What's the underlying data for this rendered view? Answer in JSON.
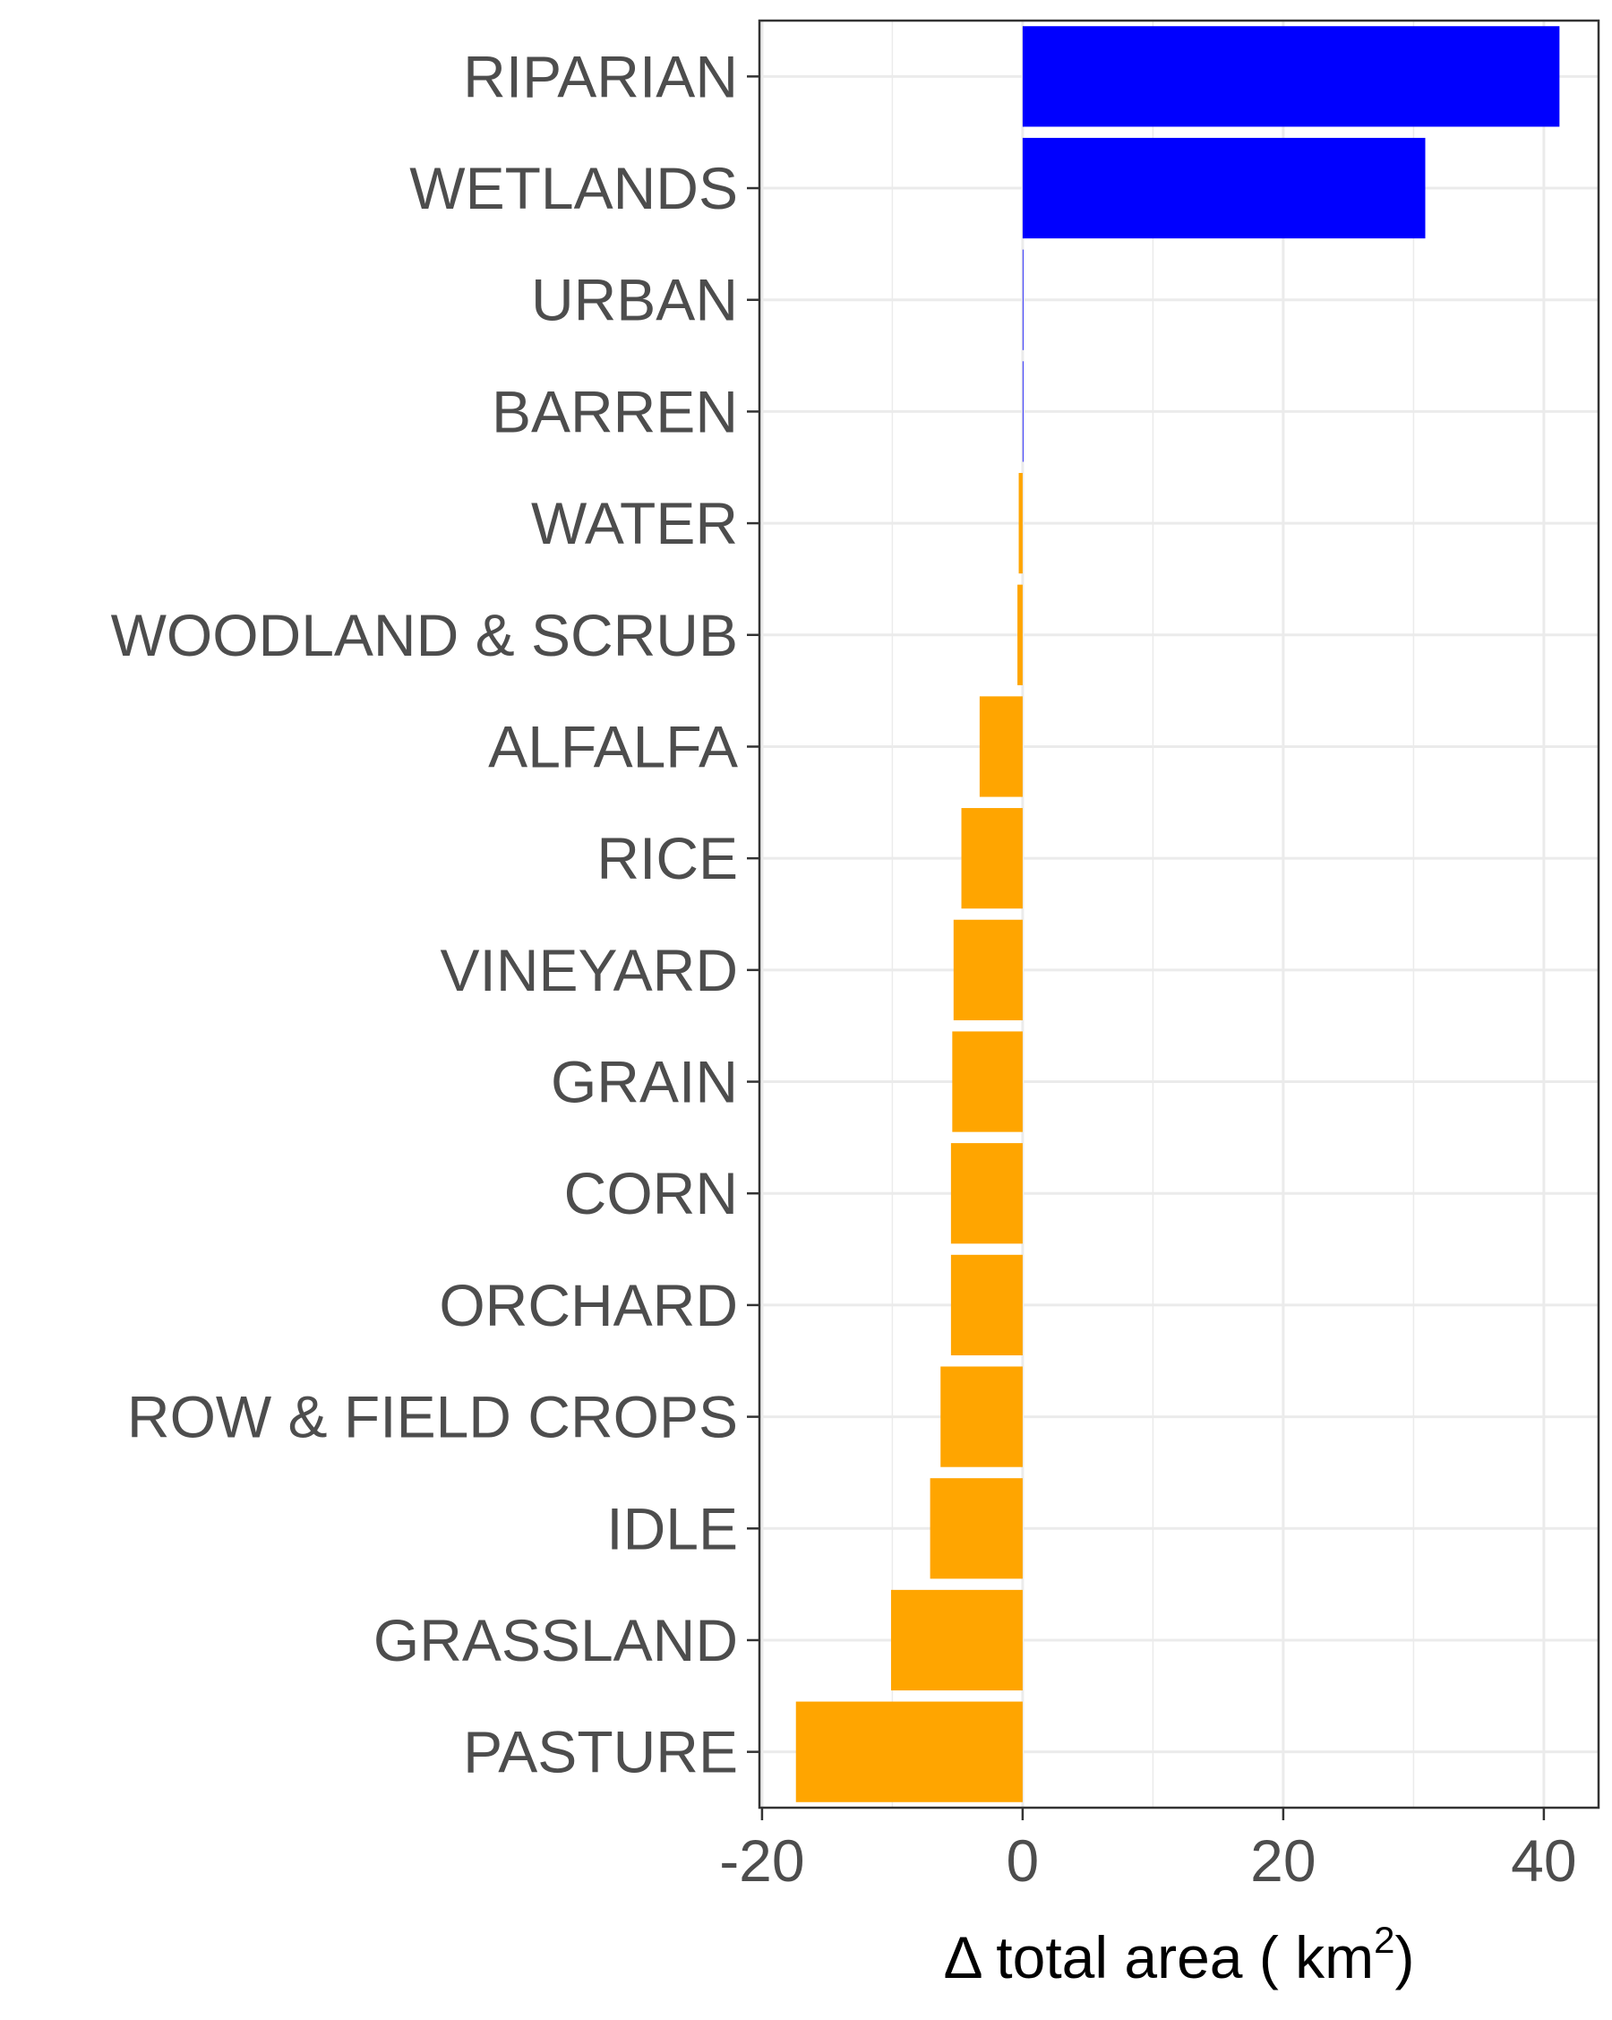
{
  "chart_data": {
    "type": "bar",
    "orientation": "horizontal",
    "categories": [
      "RIPARIAN",
      "WETLANDS",
      "URBAN",
      "BARREN",
      "WATER",
      "WOODLAND & SCRUB",
      "ALFALFA",
      "RICE",
      "VINEYARD",
      "GRAIN",
      "CORN",
      "ORCHARD",
      "ROW & FIELD CROPS",
      "IDLE",
      "GRASSLAND",
      "PASTURE"
    ],
    "values": [
      41.2,
      30.9,
      0.05,
      0.05,
      -0.3,
      -0.4,
      -3.3,
      -4.7,
      -5.3,
      -5.4,
      -5.5,
      -5.5,
      -6.3,
      -7.1,
      -10.1,
      -17.4
    ],
    "xlabel_prefix": "Δ total area ( km",
    "xlabel_superscript": "2",
    "xlabel_suffix": ")",
    "xlim": [
      -20.2,
      44.2
    ],
    "xticks": [
      -20,
      0,
      20,
      40
    ],
    "xtick_labels": [
      "-20",
      "0",
      "20",
      "40"
    ],
    "grid": true,
    "colors": {
      "positive": "#0000ff",
      "negative": "#ffa500",
      "grid": "#ebebeb",
      "axis": "#333333",
      "tick_label": "#4d4d4d",
      "axis_title": "#000000"
    }
  }
}
